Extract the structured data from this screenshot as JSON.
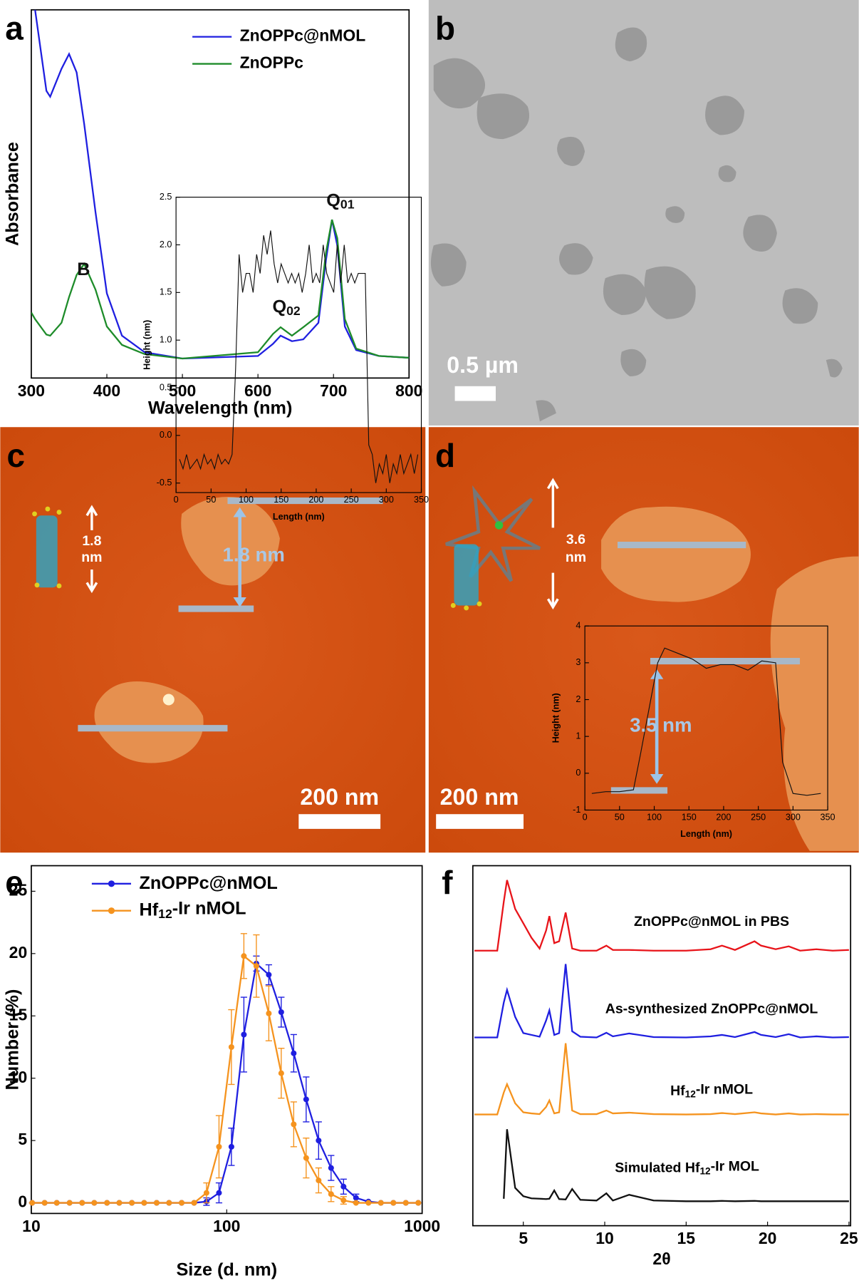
{
  "panels": {
    "labels": [
      "a",
      "b",
      "c",
      "d",
      "e",
      "f"
    ],
    "b_scale_bar": "0.5 µm",
    "c_scale_bar": "200 nm",
    "c_model_height": [
      "1.8",
      "nm"
    ],
    "d_scale_bar": "200 nm",
    "d_model_height": [
      "3.6",
      "nm"
    ]
  },
  "chart_data": [
    {
      "type": "line",
      "xlabel": "Wavelength (nm)",
      "ylabel": "Absorbance",
      "x": [
        300,
        305,
        320,
        325,
        340,
        350,
        360,
        370,
        385,
        400,
        420,
        450,
        500,
        600,
        620,
        630,
        645,
        660,
        680,
        690,
        698,
        705,
        715,
        730,
        760,
        800
      ],
      "xlim": [
        300,
        800
      ],
      "xticks": [
        300,
        400,
        500,
        600,
        700,
        800
      ],
      "ylim": [
        0,
        1
      ],
      "legend": "upper right",
      "annotations": [
        "B",
        "Q01",
        "Q02"
      ],
      "series": [
        {
          "name": "ZnOPPc@nMOL",
          "color": "#1f1fe0",
          "values": [
            null,
            1.0,
            0.78,
            0.764,
            0.84,
            0.88,
            0.83,
            0.69,
            0.45,
            0.23,
            0.115,
            0.07,
            0.053,
            0.06,
            0.093,
            0.115,
            0.1,
            0.105,
            0.15,
            0.32,
            0.43,
            0.36,
            0.14,
            0.076,
            0.06,
            0.055
          ]
        },
        {
          "name": "ZnOPPc",
          "color": "#1e8c2a",
          "values": [
            0.178,
            0.16,
            0.118,
            0.115,
            0.15,
            0.22,
            0.28,
            0.31,
            0.24,
            0.14,
            0.09,
            0.065,
            0.053,
            0.07,
            0.12,
            0.138,
            0.115,
            0.138,
            0.17,
            0.34,
            0.43,
            0.38,
            0.16,
            0.08,
            0.06,
            0.055
          ]
        }
      ]
    },
    {
      "type": "line",
      "xlabel": "Length (nm)",
      "ylabel": "Height (nm)",
      "x": [
        5,
        10,
        15,
        20,
        25,
        30,
        35,
        40,
        45,
        50,
        55,
        60,
        65,
        70,
        75,
        80,
        85,
        90,
        95,
        100,
        105,
        110,
        115,
        120,
        125,
        130,
        135,
        140,
        145,
        150,
        155,
        160,
        165,
        170,
        175,
        180,
        185,
        190,
        195,
        200,
        205,
        210,
        215,
        220,
        225,
        230,
        235,
        240,
        245,
        250,
        255,
        260,
        265,
        270,
        275,
        280,
        285,
        290,
        295,
        300,
        305,
        310,
        315,
        320,
        325,
        330,
        335,
        340,
        345
      ],
      "xlim": [
        0,
        350
      ],
      "xticks": [
        0,
        50,
        100,
        150,
        200,
        250,
        300,
        350
      ],
      "ylim": [
        -0.6,
        2.5
      ],
      "yticks": [
        -0.5,
        {
          "value": 0,
          "label": "0.0"
        },
        0.5,
        {
          "value": 1,
          "label": "1.0"
        },
        1.5,
        {
          "value": 2,
          "label": "2.0"
        },
        2.5
      ],
      "annotations": [
        "1.8 nm"
      ],
      "series": [
        {
          "color": "#111111",
          "values": [
            -0.25,
            -0.35,
            -0.2,
            -0.35,
            -0.3,
            -0.25,
            -0.35,
            -0.2,
            -0.3,
            -0.25,
            -0.35,
            -0.2,
            -0.3,
            -0.25,
            -0.3,
            -0.2,
            0.7,
            1.9,
            1.5,
            1.7,
            1.7,
            1.5,
            1.9,
            1.7,
            2.1,
            1.9,
            2.15,
            1.8,
            1.6,
            1.8,
            1.7,
            1.6,
            1.7,
            1.6,
            1.7,
            1.5,
            1.7,
            2.0,
            1.6,
            1.7,
            1.6,
            2.0,
            1.7,
            1.6,
            1.5,
            2.0,
            1.6,
            2.0,
            1.6,
            1.7,
            1.6,
            1.7,
            1.7,
            1.7,
            -0.1,
            -0.2,
            -0.5,
            -0.3,
            -0.4,
            -0.2,
            -0.5,
            -0.3,
            -0.4,
            -0.2,
            -0.4,
            -0.3,
            -0.2,
            -0.4,
            -0.2
          ]
        }
      ]
    },
    {
      "type": "line",
      "xlabel": "Length (nm)",
      "ylabel": "Height (nm)",
      "x": [
        10,
        30,
        50,
        70,
        80,
        95,
        105,
        115,
        135,
        155,
        175,
        195,
        215,
        235,
        255,
        275,
        285,
        300,
        320,
        340
      ],
      "xlim": [
        0,
        350
      ],
      "xticks": [
        0,
        50,
        100,
        150,
        200,
        250,
        300,
        350
      ],
      "ylim": [
        -1,
        4
      ],
      "yticks": [
        -1,
        0,
        1,
        2,
        3,
        4
      ],
      "annotations": [
        "3.5 nm"
      ],
      "series": [
        {
          "color": "#111111",
          "values": [
            -0.55,
            -0.5,
            -0.5,
            -0.45,
            0.5,
            2.0,
            3.0,
            3.4,
            3.25,
            3.1,
            2.85,
            2.95,
            2.95,
            2.8,
            3.05,
            3.0,
            0.3,
            -0.55,
            -0.6,
            -0.55
          ]
        }
      ]
    },
    {
      "type": "line",
      "log_x": true,
      "markers": true,
      "xlabel": "Size (d. nm)",
      "ylabel": "Number (%)",
      "x": [
        10.1,
        11.7,
        13.5,
        15.7,
        18.2,
        21.0,
        24.4,
        28.2,
        32.7,
        37.8,
        43.8,
        50.7,
        58.8,
        68.1,
        78.8,
        91.3,
        105.7,
        122.4,
        141.8,
        164.2,
        190.1,
        220.2,
        255.0,
        295.3,
        342.0,
        396.1,
        458.7,
        531.2,
        615.1,
        712.4,
        825.0,
        955.4
      ],
      "xlim": [
        10,
        1000
      ],
      "xticks": [
        10,
        100,
        1000
      ],
      "ylim": [
        -0.85,
        27.05
      ],
      "yticks": [
        0,
        5,
        10,
        15,
        20,
        25
      ],
      "legend": "upper left",
      "series": [
        {
          "name": "ZnOPPc@nMOL",
          "color": "#1f1fe0",
          "values": [
            0,
            0,
            0,
            0,
            0,
            0,
            0,
            0,
            0,
            0,
            0,
            0,
            0,
            0,
            0.1,
            0.8,
            4.5,
            13.5,
            19.2,
            18.3,
            15.3,
            12,
            8.3,
            5.0,
            2.8,
            1.3,
            0.4,
            0.1,
            0,
            0,
            0,
            0
          ],
          "errors": [
            0,
            0,
            0,
            0,
            0,
            0,
            0,
            0,
            0,
            0,
            0,
            0,
            0,
            0,
            0.3,
            0.8,
            1.5,
            3,
            0.6,
            0.8,
            1.2,
            1.5,
            1.8,
            1.5,
            1,
            0.6,
            0.3,
            0,
            0,
            0,
            0,
            0
          ]
        },
        {
          "name": "Hf12-Ir nMOL",
          "color": "#f5931e",
          "values": [
            0,
            0,
            0,
            0,
            0,
            0,
            0,
            0,
            0,
            0,
            0,
            0,
            0,
            0,
            0.8,
            4.5,
            12.5,
            19.8,
            19,
            15.2,
            10.4,
            6.3,
            3.6,
            1.8,
            0.7,
            0.2,
            0,
            0,
            0,
            0,
            0,
            0
          ],
          "errors": [
            0,
            0,
            0,
            0,
            0,
            0,
            0,
            0,
            0,
            0,
            0,
            0,
            0,
            0,
            0.8,
            2.5,
            3,
            1.8,
            2.5,
            2.2,
            2,
            1.8,
            1.6,
            1,
            0.6,
            0.3,
            0,
            0,
            0,
            0,
            0,
            0
          ]
        }
      ]
    },
    {
      "type": "line",
      "xlabel": "2θ",
      "x": [
        2.0,
        3.4,
        3.8,
        4.0,
        4.5,
        5.0,
        5.5,
        6.0,
        6.4,
        6.6,
        6.9,
        7.2,
        7.6,
        8.0,
        8.5,
        9.5,
        10.1,
        10.5,
        11.5,
        13,
        15,
        16.5,
        17.2,
        18,
        19.2,
        19.6,
        20.5,
        21.3,
        22,
        23,
        24,
        25
      ],
      "xlim": [
        1.9,
        25.1
      ],
      "xticks": [
        5,
        10,
        15,
        20,
        25
      ],
      "ylim": [
        0,
        100
      ],
      "series": [
        {
          "name": "ZnOPPc@nMOL in PBS",
          "color": "#e8141a",
          "values": [
            76.4,
            76.4,
            90,
            96,
            88,
            84,
            80,
            77,
            82,
            86,
            78.5,
            79,
            87,
            77,
            76.4,
            76.4,
            77.8,
            76.6,
            76.6,
            76.4,
            76.4,
            76.8,
            77.8,
            76.6,
            79,
            77.8,
            76.8,
            77.6,
            76.4,
            76.8,
            76.4,
            76.6
          ]
        },
        {
          "name": "As-synthesized ZnOPPc@nMOL",
          "color": "#1f1fe0",
          "values": [
            52.3,
            52.3,
            62,
            65.5,
            58,
            53.5,
            53,
            52.5,
            57,
            59.8,
            53,
            53.5,
            72.7,
            54,
            52.5,
            52.3,
            53.6,
            52.6,
            53.4,
            52.4,
            52.3,
            52.6,
            53,
            52.4,
            53.8,
            53,
            52.4,
            53.2,
            52.3,
            52.6,
            52.3,
            52.4
          ]
        },
        {
          "name": "Hf12-Ir nMOL",
          "color": "#f5931e",
          "values": [
            30.9,
            30.9,
            37,
            39.3,
            34,
            31.5,
            31.2,
            31,
            33,
            34.8,
            31.2,
            31.5,
            50.7,
            32,
            31,
            31,
            32,
            31.2,
            31.4,
            31,
            30.9,
            31,
            31.3,
            31,
            31.5,
            31.2,
            30.9,
            31.2,
            30.9,
            31,
            30.9,
            30.9
          ]
        },
        {
          "name": "Simulated Hf12-Ir MOL",
          "color": "#111111",
          "values": [
            null,
            null,
            7.5,
            26.8,
            10.5,
            8.2,
            7.6,
            7.5,
            7.4,
            7.5,
            9.8,
            7.4,
            7.3,
            10.2,
            7.2,
            7,
            9,
            7,
            8.6,
            7,
            6.8,
            6.8,
            6.9,
            6.8,
            6.9,
            6.8,
            6.8,
            6.8,
            6.8,
            6.8,
            6.8,
            6.8
          ]
        }
      ]
    }
  ]
}
